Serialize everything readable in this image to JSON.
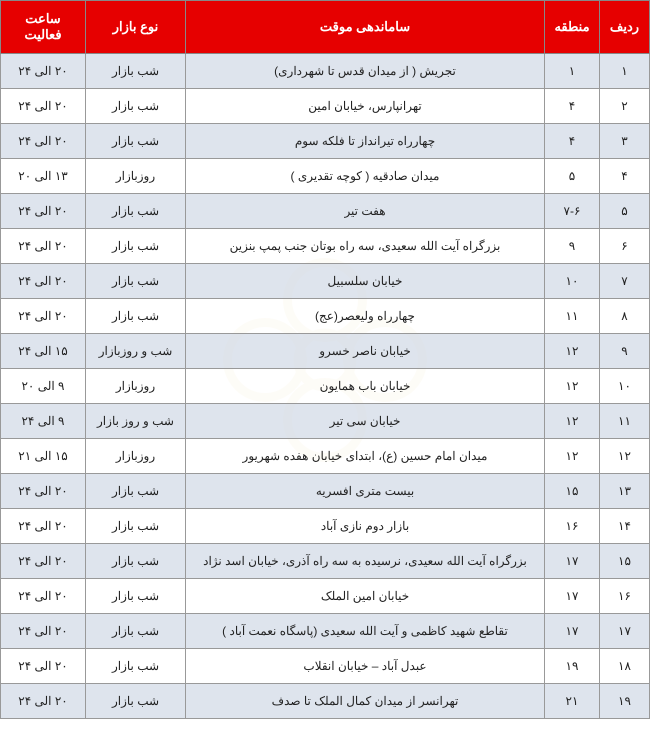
{
  "headers": {
    "radif": "ردیف",
    "mantaghe": "منطقه",
    "samandehi": "ساماندهی موقت",
    "noe_bazar": "نوع بازار",
    "saat": "ساعت فعالیت"
  },
  "rows": [
    {
      "radif": "۱",
      "mantaghe": "۱",
      "samandehi": "تجریش ( از میدان قدس تا شهرداری)",
      "noe": "شب بازار",
      "saat": "۲۰ الی ۲۴"
    },
    {
      "radif": "۲",
      "mantaghe": "۴",
      "samandehi": "تهرانپارس، خیابان امین",
      "noe": "شب بازار",
      "saat": "۲۰ الی ۲۴"
    },
    {
      "radif": "۳",
      "mantaghe": "۴",
      "samandehi": "چهارراه تیرانداز تا فلکه سوم",
      "noe": "شب بازار",
      "saat": "۲۰ الی ۲۴"
    },
    {
      "radif": "۴",
      "mantaghe": "۵",
      "samandehi": "میدان صادقیه  ( کوچه تقدیری )",
      "noe": "روزبازار",
      "saat": "۱۳ الی ۲۰"
    },
    {
      "radif": "۵",
      "mantaghe": "۷-۶",
      "samandehi": "هفت تیر",
      "noe": "شب بازار",
      "saat": "۲۰ الی ۲۴"
    },
    {
      "radif": "۶",
      "mantaghe": "۹",
      "samandehi": "بزرگراه آیت الله سعیدی، سه راه بوتان جنب پمپ بنزین",
      "noe": "شب بازار",
      "saat": "۲۰ الی ۲۴"
    },
    {
      "radif": "۷",
      "mantaghe": "۱۰",
      "samandehi": "خیابان سلسبیل",
      "noe": "شب بازار",
      "saat": "۲۰ الی ۲۴"
    },
    {
      "radif": "۸",
      "mantaghe": "۱۱",
      "samandehi": "چهارراه ولیعصر(عج)",
      "noe": "شب بازار",
      "saat": "۲۰ الی ۲۴"
    },
    {
      "radif": "۹",
      "mantaghe": "۱۲",
      "samandehi": "خیابان ناصر خسرو",
      "noe": "شب و روزبازار",
      "saat": "۱۵ الی ۲۴"
    },
    {
      "radif": "۱۰",
      "mantaghe": "۱۲",
      "samandehi": "خیابان باب همایون",
      "noe": "روزبازار",
      "saat": "۹ الی ۲۰"
    },
    {
      "radif": "۱۱",
      "mantaghe": "۱۲",
      "samandehi": "خیابان سی تیر",
      "noe": "شب و روز بازار",
      "saat": "۹ الی ۲۴"
    },
    {
      "radif": "۱۲",
      "mantaghe": "۱۲",
      "samandehi": "میدان امام حسین (ع)، ابتدای خیابان هفده شهریور",
      "noe": "روزبازار",
      "saat": "۱۵ الی ۲۱"
    },
    {
      "radif": "۱۳",
      "mantaghe": "۱۵",
      "samandehi": "بیست متری افسریه",
      "noe": "شب بازار",
      "saat": "۲۰ الی ۲۴"
    },
    {
      "radif": "۱۴",
      "mantaghe": "۱۶",
      "samandehi": "بازار دوم نازی آباد",
      "noe": "شب بازار",
      "saat": "۲۰ الی ۲۴"
    },
    {
      "radif": "۱۵",
      "mantaghe": "۱۷",
      "samandehi": "بزرگراه آیت الله سعیدی، نرسیده به سه راه آذری، خیابان اسد نژاد",
      "noe": "شب بازار",
      "saat": "۲۰ الی ۲۴"
    },
    {
      "radif": "۱۶",
      "mantaghe": "۱۷",
      "samandehi": "خیابان امین الملک",
      "noe": "شب بازار",
      "saat": "۲۰ الی ۲۴"
    },
    {
      "radif": "۱۷",
      "mantaghe": "۱۷",
      "samandehi": "تقاطع شهید کاظمی و آیت الله سعیدی (پاسگاه نعمت آباد )",
      "noe": "شب بازار",
      "saat": "۲۰ الی ۲۴"
    },
    {
      "radif": "۱۸",
      "mantaghe": "۱۹",
      "samandehi": "عبدل آباد – خیابان انقلاب",
      "noe": "شب بازار",
      "saat": "۲۰ الی ۲۴"
    },
    {
      "radif": "۱۹",
      "mantaghe": "۲۱",
      "samandehi": "تهرانسر از میدان کمال الملک تا صدف",
      "noe": "شب بازار",
      "saat": "۲۰ الی ۲۴"
    }
  ],
  "colors": {
    "header_bg": "#e60000",
    "header_text": "#ffffff",
    "alt_row_bg": "#d8dfea",
    "border": "#999999",
    "text": "#222222"
  }
}
